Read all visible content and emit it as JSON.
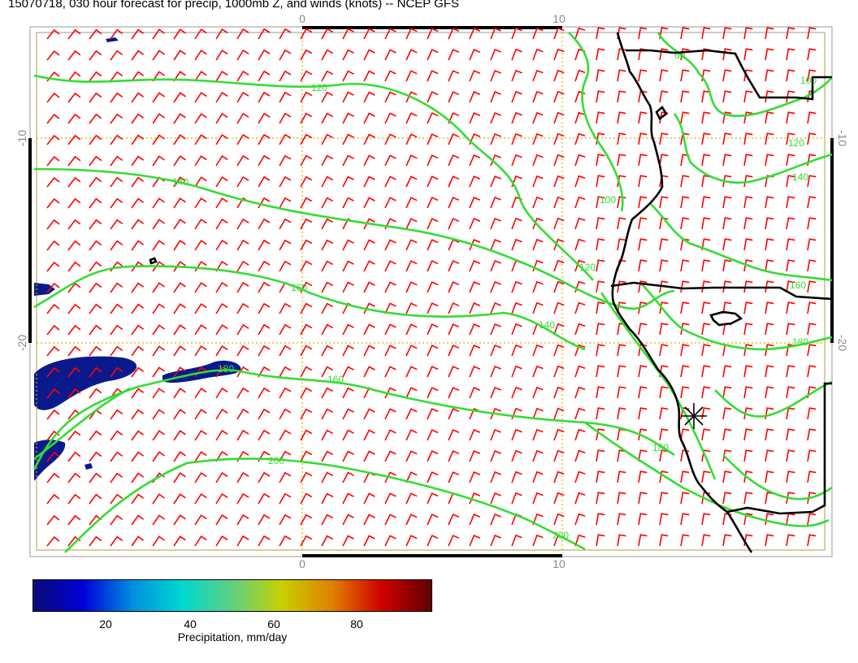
{
  "title": "15070718, 030 hour forecast for precip, 1000mb Z, and winds (knots) -- NCEP GFS",
  "map": {
    "lon_ticks": [
      "0",
      "10"
    ],
    "lat_ticks": [
      "-10",
      "-20"
    ],
    "contour_labels": [
      "120",
      "140",
      "160",
      "180",
      "200",
      "100",
      "120",
      "140",
      "160",
      "180",
      "60",
      "100",
      "120",
      "140",
      "160",
      "180",
      "200"
    ],
    "colors": {
      "contour": "#33dd33",
      "wind_barb": "#ff0000",
      "coastline": "#000000",
      "grid": "#d4b400",
      "precip_low": "#0a1a8c"
    },
    "marker": "asterisk-icon"
  },
  "colorbar": {
    "ticks": [
      "20",
      "40",
      "60",
      "80"
    ],
    "label": "Precipitation, mm/day"
  }
}
